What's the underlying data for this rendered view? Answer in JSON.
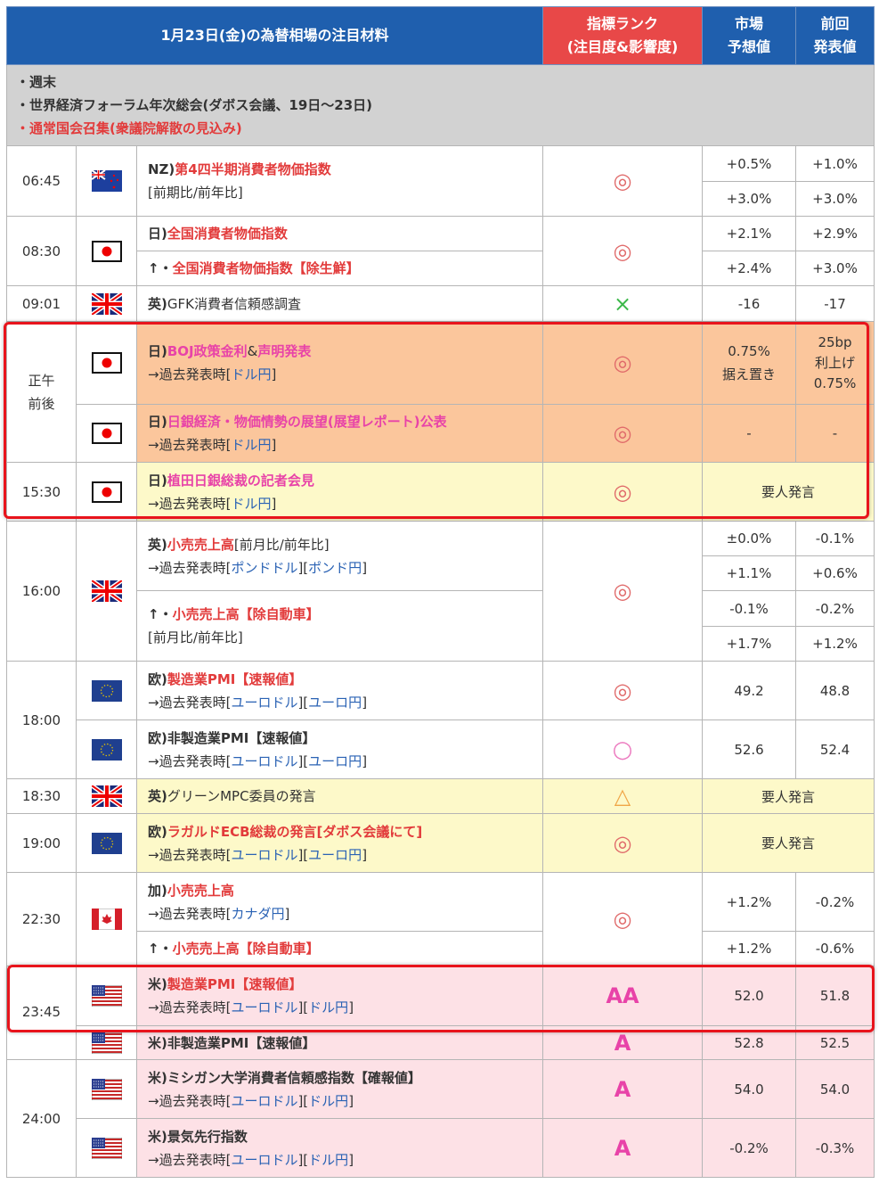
{
  "header": {
    "title": "1月23日(金)の為替相場の注目材料",
    "rank1": "指標ランク",
    "rank2": "(注目度&影響度)",
    "fc1": "市場",
    "fc2": "予想値",
    "pv1": "前回",
    "pv2": "発表値"
  },
  "notes": [
    "・週末",
    "・世界経済フォーラム年次総会(ダボス会議、19日～23日)",
    "・通常国会召集(衆議院解散の見込み)"
  ],
  "colors": {
    "header": "#1f5fae",
    "rank_header": "#e84848",
    "title_red": "#e23b3b",
    "title_pink": "#e843a8",
    "link": "#2a62b4",
    "boj_bg": "#fbc69c",
    "speech_bg": "#fdf9c9",
    "us_bg": "#fde1e6",
    "highlight": "#e8141c"
  },
  "past": "→過去発表時",
  "links": {
    "usdjpy": "ドル円",
    "gbpusd": "ポンドドル",
    "gbpjpy": "ポンド円",
    "eurusd": "ユーロドル",
    "eurjpy": "ユーロ円",
    "cadjpy": "カナダ円"
  },
  "speech": "要人発言",
  "rows": [
    {
      "time": "06:45",
      "flag": "nz-flag",
      "p": "NZ)",
      "t": "第4四半期消費者物価指数",
      "l2": "[前期比/前年比]",
      "rank": "◎",
      "f": [
        "+0.5%",
        "+3.0%"
      ],
      "pv": [
        "+1.0%",
        "+3.0%"
      ]
    },
    {
      "time": "08:30",
      "flag": "jp-flag",
      "p": "日)",
      "t": "全国消費者物価指数",
      "p2": "↑・",
      "t2": "全国消費者物価指数【除生鮮】",
      "rank": "◎",
      "f": [
        "+2.1%",
        "+2.4%"
      ],
      "pv": [
        "+2.9%",
        "+3.0%"
      ]
    },
    {
      "time": "09:01",
      "flag": "uk-flag",
      "p": "英)",
      "t": "GFK消費者信頼感調査",
      "rank": "×",
      "f": "-16",
      "pv": "-17"
    },
    {
      "time1": "正午",
      "time2": "前後",
      "flag": "jp-flag",
      "p": "日)",
      "t": "BOJ政策金利",
      "amp": "&",
      "t2": "声明発表",
      "rank": "◎",
      "f": [
        "0.75%",
        "据え置き"
      ],
      "pv": [
        "25bp",
        "利上げ",
        "0.75%"
      ]
    },
    {
      "flag": "jp-flag",
      "p": "日)",
      "t": "日銀経済・物価情勢の展望(展望レポート)公表",
      "rank": "◎",
      "f": "-",
      "pv": "-"
    },
    {
      "time": "15:30",
      "flag": "jp-flag",
      "p": "日)",
      "t": "植田日銀総裁の記者会見",
      "rank": "◎"
    },
    {
      "time": "16:00",
      "flag": "uk-flag",
      "p": "英)",
      "t": "小売売上高",
      "tail": "[前月比/前年比]",
      "p2": "↑・",
      "t2": "小売売上高【除自動車】",
      "l3": "[前月比/前年比]",
      "rank": "◎",
      "f": [
        "±0.0%",
        "+1.1%",
        "-0.1%",
        "+1.7%"
      ],
      "pv": [
        "-0.1%",
        "+0.6%",
        "-0.2%",
        "+1.2%"
      ]
    },
    {
      "time": "18:00",
      "flag": "eu-flag",
      "p": "欧)",
      "t": "製造業PMI【速報値】",
      "rank": "◎",
      "f": "49.2",
      "pv": "48.8"
    },
    {
      "flag": "eu-flag",
      "p": "欧)非製造業PMI【速報値】",
      "rank": "○",
      "f": "52.6",
      "pv": "52.4"
    },
    {
      "time": "18:30",
      "flag": "uk-flag",
      "p": "英)",
      "t": "グリーンMPC委員の発言",
      "rank": "△"
    },
    {
      "time": "19:00",
      "flag": "eu-flag",
      "p": "欧)",
      "t": "ラガルドECB総裁の発言[ダボス会議にて]",
      "rank": "◎"
    },
    {
      "time": "22:30",
      "flag": "ca-flag",
      "p": "加)",
      "t": "小売売上高",
      "p2": "↑・",
      "t2": "小売売上高【除自動車】",
      "rank": "◎",
      "f": [
        "+1.2%",
        "+1.2%"
      ],
      "pv": [
        "-0.2%",
        "-0.6%"
      ]
    },
    {
      "time": "23:45",
      "flag": "us-flag",
      "p": "米)",
      "t": "製造業PMI【速報値】",
      "rank": "AA",
      "f": "52.0",
      "pv": "51.8"
    },
    {
      "flag": "us-flag",
      "p": "米)非製造業PMI【速報値】",
      "rank": "A",
      "f": "52.8",
      "pv": "52.5"
    },
    {
      "time": "24:00",
      "flag": "us-flag",
      "p": "米)ミシガン大学消費者信頼感指数【確報値】",
      "rank": "A",
      "f": "54.0",
      "pv": "54.0"
    },
    {
      "flag": "us-flag",
      "p": "米)景気先行指数",
      "rank": "A",
      "f": "-0.2%",
      "pv": "-0.3%"
    }
  ]
}
